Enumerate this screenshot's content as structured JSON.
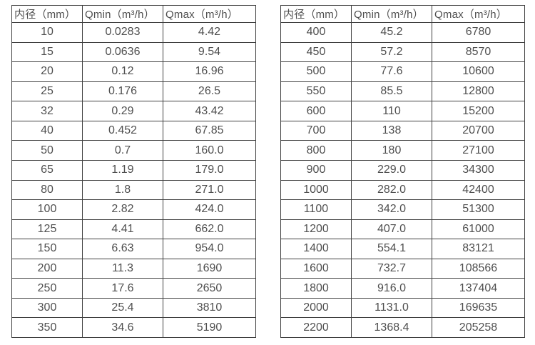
{
  "colors": {
    "border": "#404040",
    "text": "#4f4f4f",
    "background": "#ffffff"
  },
  "tables": [
    {
      "name": "small-diameter-flow-table",
      "headers": [
        "内径（mm）",
        "Qmin（m³/h）",
        "Qmax（m³/h）"
      ],
      "rows": [
        [
          "10",
          "0.0283",
          "4.42"
        ],
        [
          "15",
          "0.0636",
          "9.54"
        ],
        [
          "20",
          "0.12",
          "16.96"
        ],
        [
          "25",
          "0.176",
          "26.5"
        ],
        [
          "32",
          "0.29",
          "43.42"
        ],
        [
          "40",
          "0.452",
          "67.85"
        ],
        [
          "50",
          "0.7",
          "160.0"
        ],
        [
          "65",
          "1.19",
          "179.0"
        ],
        [
          "80",
          "1.8",
          "271.0"
        ],
        [
          "100",
          "2.82",
          "424.0"
        ],
        [
          "125",
          "4.41",
          "662.0"
        ],
        [
          "150",
          "6.63",
          "954.0"
        ],
        [
          "200",
          "11.3",
          "1690"
        ],
        [
          "250",
          "17.6",
          "2650"
        ],
        [
          "300",
          "25.4",
          "3810"
        ],
        [
          "350",
          "34.6",
          "5190"
        ]
      ]
    },
    {
      "name": "large-diameter-flow-table",
      "headers": [
        "内径（mm）",
        "Qmin（m³/h）",
        "Qmax（m³/h）"
      ],
      "rows": [
        [
          "400",
          "45.2",
          "6780"
        ],
        [
          "450",
          "57.2",
          "8570"
        ],
        [
          "500",
          "77.6",
          "10600"
        ],
        [
          "550",
          "85.5",
          "12800"
        ],
        [
          "600",
          "110",
          "15200"
        ],
        [
          "700",
          "138",
          "20700"
        ],
        [
          "800",
          "180",
          "27100"
        ],
        [
          "900",
          "229.0",
          "34300"
        ],
        [
          "1000",
          "282.0",
          "42400"
        ],
        [
          "1100",
          "342.0",
          "51300"
        ],
        [
          "1200",
          "407.0",
          "61000"
        ],
        [
          "1400",
          "554.1",
          "83121"
        ],
        [
          "1600",
          "732.7",
          "108566"
        ],
        [
          "1800",
          "916.0",
          "137404"
        ],
        [
          "2000",
          "1131.0",
          "169635"
        ],
        [
          "2200",
          "1368.4",
          "205258"
        ]
      ]
    }
  ]
}
